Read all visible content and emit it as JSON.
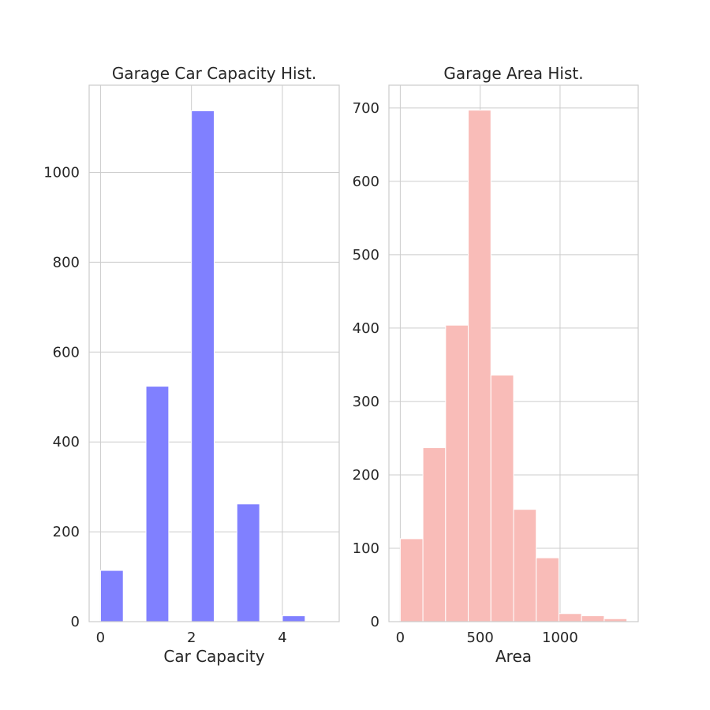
{
  "chart_data": [
    {
      "type": "bar",
      "title": "Garage Car Capacity Hist.",
      "xlabel": "Car Capacity",
      "ylabel": "",
      "color": "#8080ff",
      "grid": true,
      "xlim": [
        -0.25,
        5.25
      ],
      "ylim": [
        0,
        1194
      ],
      "xticks": [
        0,
        2,
        4
      ],
      "yticks": [
        0,
        200,
        400,
        600,
        800,
        1000
      ],
      "bins": [
        {
          "x0": 0.0,
          "x1": 0.5,
          "value": 114
        },
        {
          "x0": 0.5,
          "x1": 1.0,
          "value": 0
        },
        {
          "x0": 1.0,
          "x1": 1.5,
          "value": 524
        },
        {
          "x0": 1.5,
          "x1": 2.0,
          "value": 0
        },
        {
          "x0": 2.0,
          "x1": 2.5,
          "value": 1137
        },
        {
          "x0": 2.5,
          "x1": 3.0,
          "value": 0
        },
        {
          "x0": 3.0,
          "x1": 3.5,
          "value": 262
        },
        {
          "x0": 3.5,
          "x1": 4.0,
          "value": 0
        },
        {
          "x0": 4.0,
          "x1": 4.5,
          "value": 13
        },
        {
          "x0": 4.5,
          "x1": 5.0,
          "value": 0
        }
      ]
    },
    {
      "type": "bar",
      "title": "Garage Area Hist.",
      "xlabel": "Area",
      "ylabel": "",
      "color": "#f9bcb8",
      "grid": true,
      "xlim": [
        -71,
        1489
      ],
      "ylim": [
        0,
        731
      ],
      "xticks": [
        0,
        500,
        1000
      ],
      "yticks": [
        0,
        100,
        200,
        300,
        400,
        500,
        600,
        700
      ],
      "bins": [
        {
          "x0": 0.0,
          "x1": 141.8,
          "value": 113
        },
        {
          "x0": 141.8,
          "x1": 283.6,
          "value": 237
        },
        {
          "x0": 283.6,
          "x1": 425.4,
          "value": 404
        },
        {
          "x0": 425.4,
          "x1": 567.2,
          "value": 697
        },
        {
          "x0": 567.2,
          "x1": 709.0,
          "value": 336
        },
        {
          "x0": 709.0,
          "x1": 850.8,
          "value": 153
        },
        {
          "x0": 850.8,
          "x1": 992.6,
          "value": 87
        },
        {
          "x0": 992.6,
          "x1": 1134.4,
          "value": 11
        },
        {
          "x0": 1134.4,
          "x1": 1276.2,
          "value": 8
        },
        {
          "x0": 1276.2,
          "x1": 1418.0,
          "value": 4
        }
      ]
    }
  ]
}
